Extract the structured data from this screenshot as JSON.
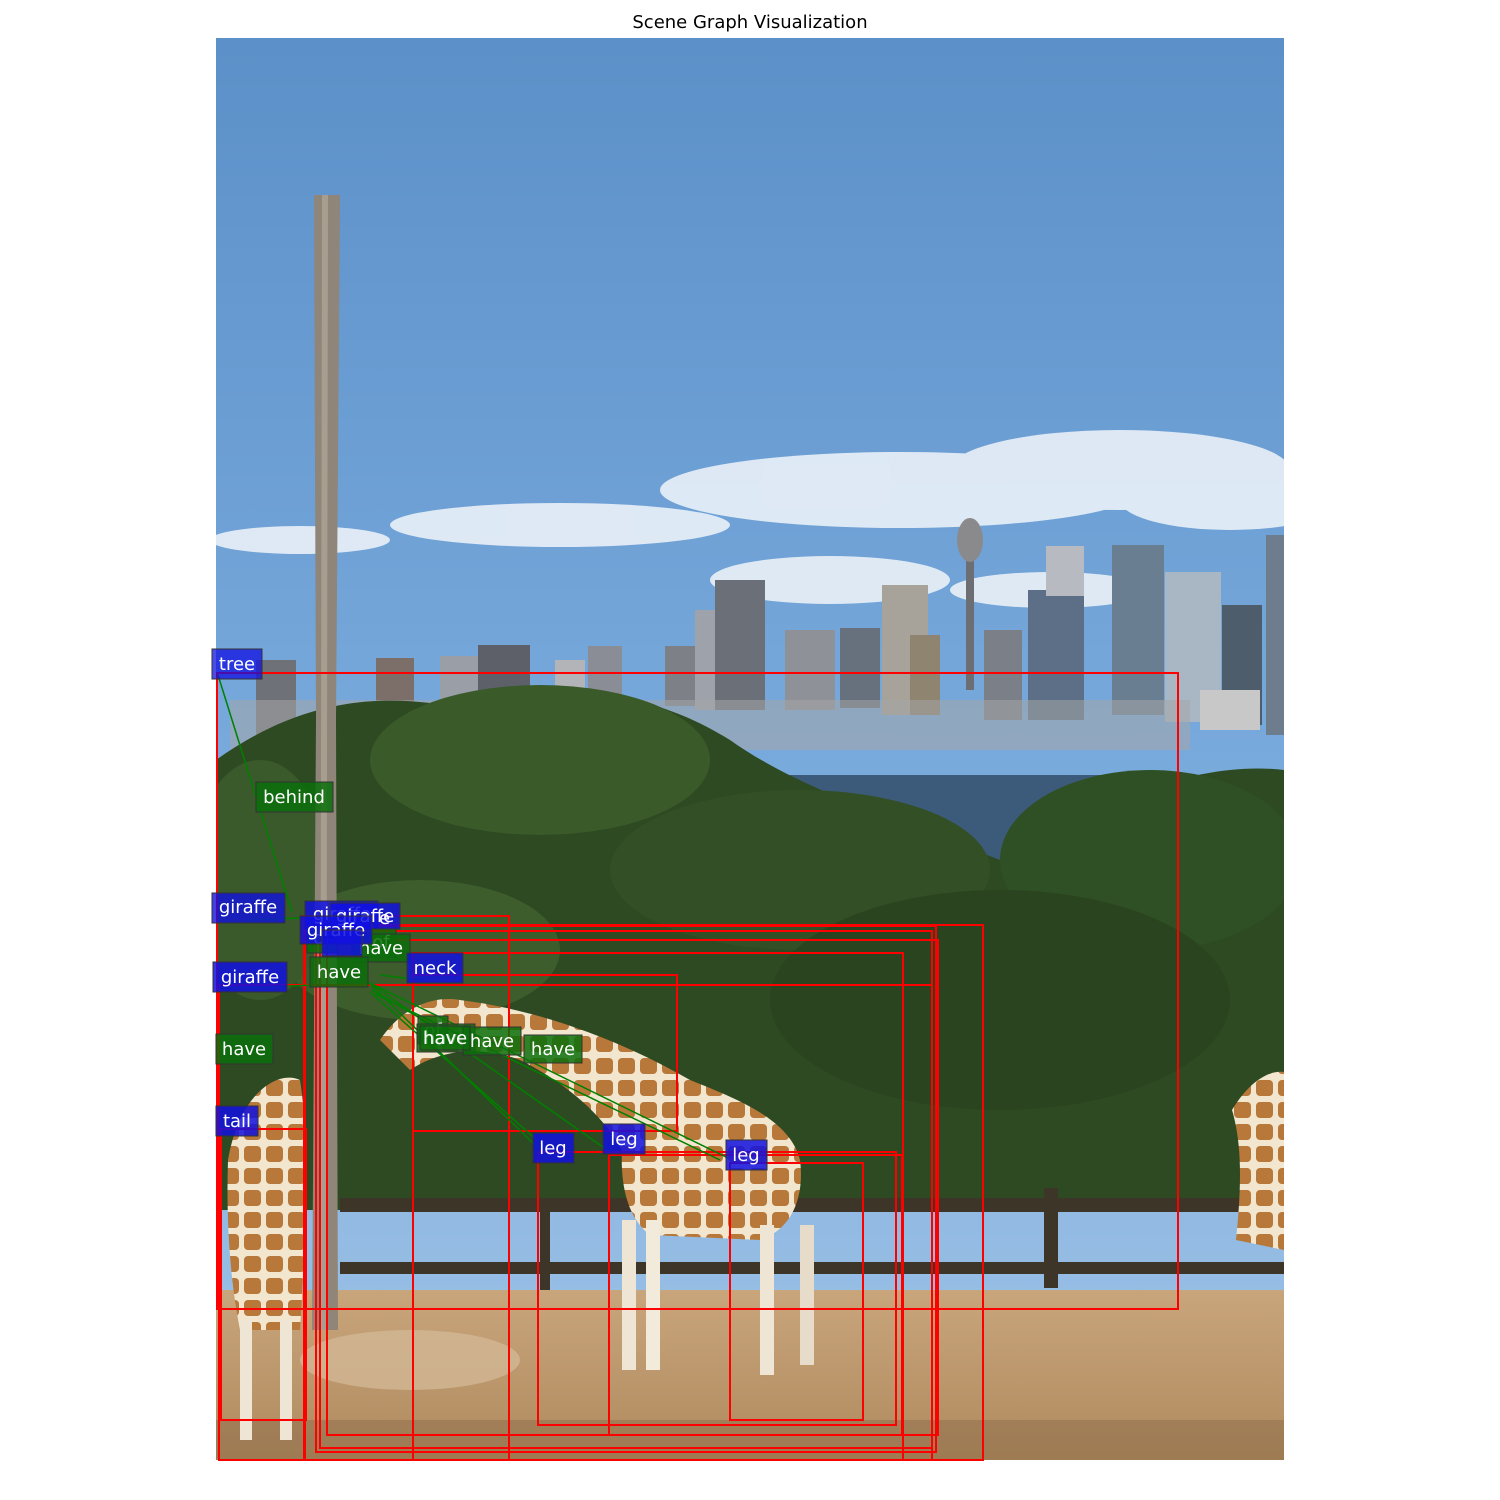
{
  "figure": {
    "title": "Scene Graph Visualization"
  },
  "colors": {
    "box": "#ff0000",
    "edge": "#008000",
    "object_label_bg": "#1010e0",
    "relation_label_bg": "#0a6e0a",
    "label_text": "#ffffff"
  },
  "photo": {
    "subjects": [
      "sky-with-clouds",
      "city-skyline",
      "harbour-water",
      "trees",
      "wooden-pole",
      "giraffes",
      "fence",
      "dirt-ground"
    ]
  },
  "object_labels": [
    "tree",
    "giraffe",
    "giraffe",
    "giraffe",
    "giraffe",
    "giraffe",
    "giraffe",
    "neck",
    "tail",
    "leg",
    "leg",
    "leg"
  ],
  "relation_labels": [
    "behind",
    "of",
    "of",
    "have",
    "have",
    "have",
    "of",
    "have",
    "have",
    "have",
    "have"
  ]
}
